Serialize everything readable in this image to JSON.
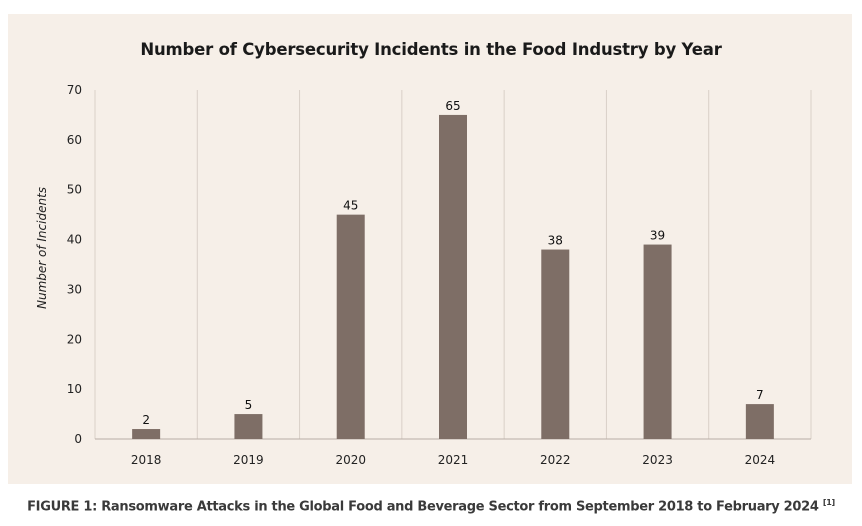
{
  "chart_data": {
    "type": "bar",
    "title": "Number of Cybersecurity Incidents in the Food Industry by Year",
    "xlabel": "",
    "ylabel": "Number of Incidents",
    "categories": [
      "2018",
      "2019",
      "2020",
      "2021",
      "2022",
      "2023",
      "2024"
    ],
    "values": [
      2,
      5,
      45,
      65,
      38,
      39,
      7
    ],
    "ylim": [
      0,
      70
    ],
    "yticks": [
      0,
      10,
      20,
      30,
      40,
      50,
      60,
      70
    ],
    "grid": "vertical category separators",
    "data_labels": true,
    "bar_color": "#7e6e66"
  },
  "caption": {
    "text": "FIGURE 1: Ransomware Attacks in the Global Food and Beverage Sector from September 2018 to February 2024",
    "ref": "[1]"
  },
  "colors": {
    "panel_background": "#f6efe8",
    "bar": "#7e6e66",
    "gridline": "#d9d0c8"
  }
}
